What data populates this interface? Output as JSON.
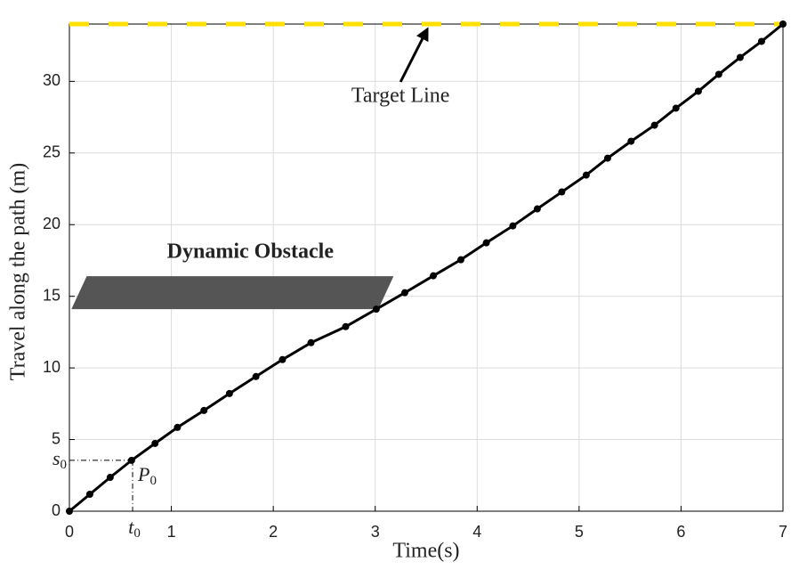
{
  "chart_data": {
    "type": "line",
    "x_label": "Time(s)",
    "y_label": "Travel along the path (m)",
    "x": [
      0,
      0.2,
      0.4,
      0.61,
      0.84,
      1.06,
      1.32,
      1.57,
      1.83,
      2.09,
      2.37,
      2.71,
      3.01,
      3.29,
      3.57,
      3.84,
      4.09,
      4.35,
      4.59,
      4.83,
      5.07,
      5.28,
      5.51,
      5.74,
      5.95,
      6.17,
      6.37,
      6.58,
      6.79,
      7
    ],
    "series": [
      {
        "color": "#000000",
        "values": [
          0,
          1.18,
          2.36,
          3.55,
          4.73,
          5.85,
          7.03,
          8.21,
          9.4,
          10.58,
          11.76,
          12.88,
          14.1,
          15.25,
          16.43,
          17.55,
          18.73,
          19.91,
          21.1,
          22.28,
          23.46,
          24.64,
          25.82,
          26.94,
          28.13,
          29.31,
          30.49,
          31.67,
          32.79,
          34
        ]
      }
    ],
    "xlim": [
      0,
      7
    ],
    "ylim": [
      0,
      34
    ],
    "xticks": [
      0,
      1,
      2,
      3,
      4,
      5,
      6,
      7
    ],
    "yticks": [
      0,
      5,
      10,
      15,
      20,
      25,
      30
    ],
    "grid": true,
    "target": {
      "label": "Target Line",
      "value": 34,
      "color": "#ffe000",
      "arrow_x": 3.51
    },
    "obstacle": {
      "label": "Dynamic Obstacle",
      "color": "#555555",
      "x": [
        0.02,
        0.17,
        3.18,
        3.03
      ],
      "y": [
        14.1,
        16.4,
        16.4,
        14.1
      ]
    },
    "p0": {
      "x": 0.62,
      "y": 3.55,
      "label": {
        "text": "P",
        "sub": "0"
      },
      "x_label": {
        "text": "t",
        "sub": "0"
      },
      "y_label": {
        "text": "s",
        "sub": "0"
      }
    }
  }
}
